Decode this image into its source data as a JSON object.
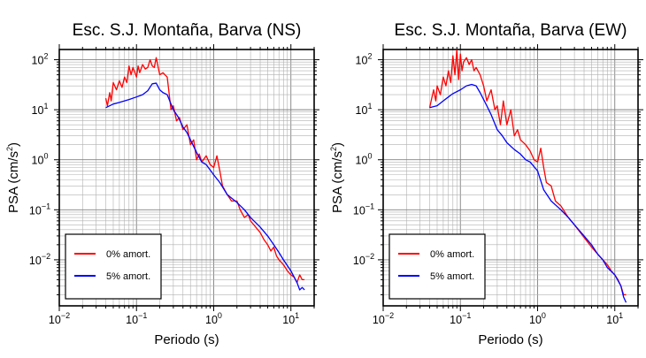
{
  "chart_data": [
    {
      "type": "line",
      "title": "Esc. S.J. Montaña, Barva (NS)",
      "xlabel": "Periodo (s)",
      "ylabel": "PSA (cm/s²)",
      "xscale": "log",
      "yscale": "log",
      "xlim": [
        0.01,
        20
      ],
      "ylim": [
        0.0012,
        160
      ],
      "grid": true,
      "legend": "bottom-left",
      "series": [
        {
          "name": "0% amort.",
          "color": "#ff0000",
          "x": [
            0.04,
            0.042,
            0.045,
            0.047,
            0.05,
            0.055,
            0.06,
            0.065,
            0.07,
            0.075,
            0.08,
            0.085,
            0.09,
            0.1,
            0.105,
            0.11,
            0.12,
            0.13,
            0.14,
            0.15,
            0.16,
            0.17,
            0.18,
            0.2,
            0.22,
            0.25,
            0.28,
            0.3,
            0.33,
            0.36,
            0.4,
            0.45,
            0.5,
            0.55,
            0.6,
            0.65,
            0.7,
            0.8,
            0.9,
            1.0,
            1.1,
            1.2,
            1.3,
            1.5,
            1.7,
            2.0,
            2.2,
            2.5,
            2.8,
            3.0,
            3.5,
            4.0,
            4.5,
            5.0,
            5.5,
            6.0,
            6.5,
            7.0,
            8.0,
            9.0,
            10,
            11,
            12,
            13,
            14,
            15
          ],
          "y": [
            17,
            12,
            22,
            15,
            35,
            25,
            38,
            28,
            45,
            35,
            75,
            50,
            70,
            45,
            75,
            55,
            80,
            65,
            70,
            100,
            75,
            70,
            110,
            50,
            55,
            45,
            10,
            12,
            6,
            7,
            4,
            5,
            2.0,
            2.5,
            1.0,
            1.3,
            0.9,
            1.2,
            0.8,
            0.7,
            1.2,
            0.6,
            0.3,
            0.2,
            0.15,
            0.15,
            0.1,
            0.07,
            0.08,
            0.06,
            0.045,
            0.035,
            0.025,
            0.02,
            0.015,
            0.018,
            0.012,
            0.01,
            0.008,
            0.006,
            0.005,
            0.0045,
            0.0035,
            0.005,
            0.004,
            0.004
          ]
        },
        {
          "name": "5% amort.",
          "color": "#0000ff",
          "x": [
            0.04,
            0.05,
            0.06,
            0.07,
            0.08,
            0.1,
            0.12,
            0.14,
            0.16,
            0.18,
            0.2,
            0.22,
            0.25,
            0.3,
            0.35,
            0.4,
            0.45,
            0.5,
            0.6,
            0.7,
            0.8,
            1.0,
            1.2,
            1.5,
            2.0,
            2.5,
            3.0,
            4.0,
            5.0,
            6.0,
            7.0,
            8.0,
            10,
            12,
            13,
            14,
            15
          ],
          "y": [
            11,
            13,
            14,
            15,
            16,
            18,
            20,
            24,
            33,
            34,
            25,
            22,
            20,
            10,
            7,
            4.5,
            3.5,
            2.5,
            1.4,
            0.9,
            0.8,
            0.5,
            0.35,
            0.2,
            0.14,
            0.1,
            0.07,
            0.045,
            0.03,
            0.02,
            0.014,
            0.01,
            0.006,
            0.0035,
            0.0025,
            0.0028,
            0.0025
          ]
        }
      ]
    },
    {
      "type": "line",
      "title": "Esc. S.J. Montaña, Barva (EW)",
      "xlabel": "Periodo (s)",
      "ylabel": "PSA (cm/s²)",
      "xscale": "log",
      "yscale": "log",
      "xlim": [
        0.01,
        20
      ],
      "ylim": [
        0.0012,
        160
      ],
      "grid": true,
      "legend": "bottom-left",
      "series": [
        {
          "name": "0% amort.",
          "color": "#ff0000",
          "x": [
            0.04,
            0.045,
            0.048,
            0.05,
            0.055,
            0.06,
            0.065,
            0.07,
            0.075,
            0.08,
            0.085,
            0.09,
            0.095,
            0.1,
            0.105,
            0.11,
            0.12,
            0.13,
            0.14,
            0.15,
            0.16,
            0.18,
            0.2,
            0.22,
            0.25,
            0.28,
            0.3,
            0.33,
            0.36,
            0.4,
            0.45,
            0.5,
            0.55,
            0.6,
            0.7,
            0.8,
            0.9,
            1.0,
            1.1,
            1.2,
            1.3,
            1.5,
            1.7,
            2.0,
            2.5,
            3.0,
            4.0,
            5.0,
            6.0,
            7.0,
            8.0,
            9.0,
            10,
            11,
            12,
            13,
            14
          ],
          "y": [
            11,
            25,
            15,
            30,
            20,
            45,
            30,
            60,
            35,
            120,
            50,
            160,
            40,
            130,
            60,
            90,
            110,
            80,
            100,
            60,
            70,
            50,
            30,
            15,
            25,
            10,
            12,
            5,
            15,
            5,
            10,
            3,
            4,
            2.5,
            2.0,
            1.5,
            1.0,
            0.9,
            1.7,
            0.7,
            0.35,
            0.3,
            0.15,
            0.12,
            0.07,
            0.05,
            0.028,
            0.018,
            0.013,
            0.01,
            0.008,
            0.006,
            0.005,
            0.004,
            0.003,
            0.002,
            0.002
          ]
        },
        {
          "name": "5% amort.",
          "color": "#0000ff",
          "x": [
            0.04,
            0.05,
            0.06,
            0.07,
            0.08,
            0.1,
            0.12,
            0.14,
            0.16,
            0.18,
            0.2,
            0.22,
            0.25,
            0.3,
            0.35,
            0.4,
            0.5,
            0.6,
            0.7,
            0.8,
            1.0,
            1.2,
            1.5,
            2.0,
            2.5,
            3.0,
            4.0,
            5.0,
            6.0,
            7.0,
            8.0,
            10,
            12,
            13,
            14
          ],
          "y": [
            11,
            12,
            15,
            18,
            21,
            25,
            30,
            32,
            30,
            22,
            16,
            12,
            8,
            4.0,
            3.0,
            2.2,
            1.6,
            1.3,
            1.0,
            0.9,
            0.6,
            0.25,
            0.15,
            0.1,
            0.07,
            0.05,
            0.03,
            0.02,
            0.013,
            0.01,
            0.007,
            0.005,
            0.003,
            0.0018,
            0.0014
          ]
        }
      ]
    }
  ]
}
